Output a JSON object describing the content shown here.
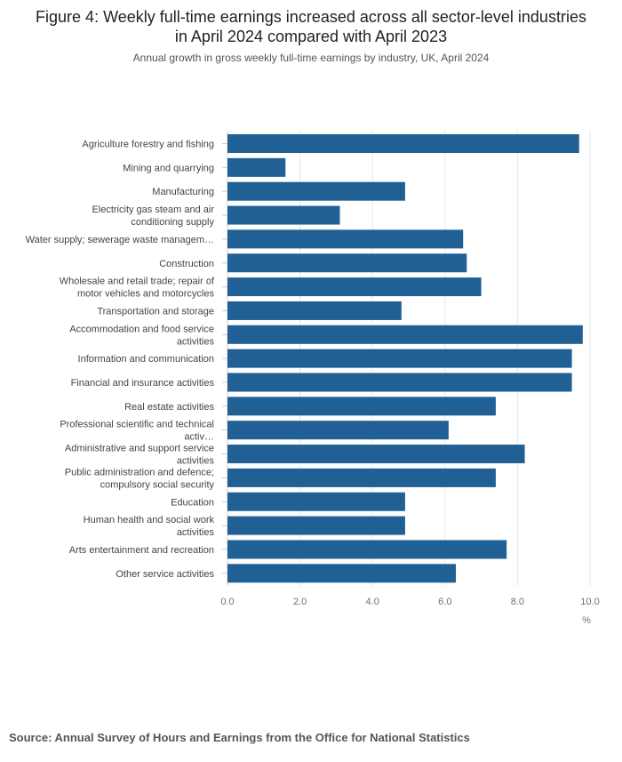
{
  "title": "Figure 4: Weekly full-time earnings increased across all sector-level industries in April 2024 compared with April 2023",
  "subtitle": "Annual growth in gross weekly full-time earnings by industry, UK, April 2024",
  "source": "Source: Annual Survey of Hours and Earnings from the Office for National Statistics",
  "colors": {
    "bar": "#206095",
    "grid": "#e6e6e6",
    "tick_text": "#707070",
    "label_text": "#444444"
  },
  "chart_data": {
    "type": "bar",
    "orientation": "horizontal",
    "categories": [
      "Agriculture forestry and fishing",
      "Mining and quarrying",
      "Manufacturing",
      "Electricity gas steam and air conditioning supply",
      "Water supply; sewerage waste managem…",
      "Construction",
      "Wholesale and retail trade; repair of motor vehicles and motorcycles",
      "Transportation and storage",
      "Accommodation and food service activities",
      "Information and communication",
      "Financial and insurance activities",
      "Real estate activities",
      "Professional scientific and technical activ…",
      "Administrative and support service activities",
      "Public administration and defence; compulsory social security",
      "Education",
      "Human health and social work activities",
      "Arts entertainment and recreation",
      "Other service activities"
    ],
    "values": [
      9.7,
      1.6,
      4.9,
      3.1,
      6.5,
      6.6,
      7.0,
      4.8,
      9.8,
      9.5,
      9.5,
      7.4,
      6.1,
      8.2,
      7.4,
      4.9,
      4.9,
      7.7,
      6.3
    ],
    "xlim": [
      0,
      10
    ],
    "xticks": [
      "0.0",
      "2.0",
      "4.0",
      "6.0",
      "8.0",
      "10.0"
    ],
    "xlabel": "%",
    "grid": true
  }
}
